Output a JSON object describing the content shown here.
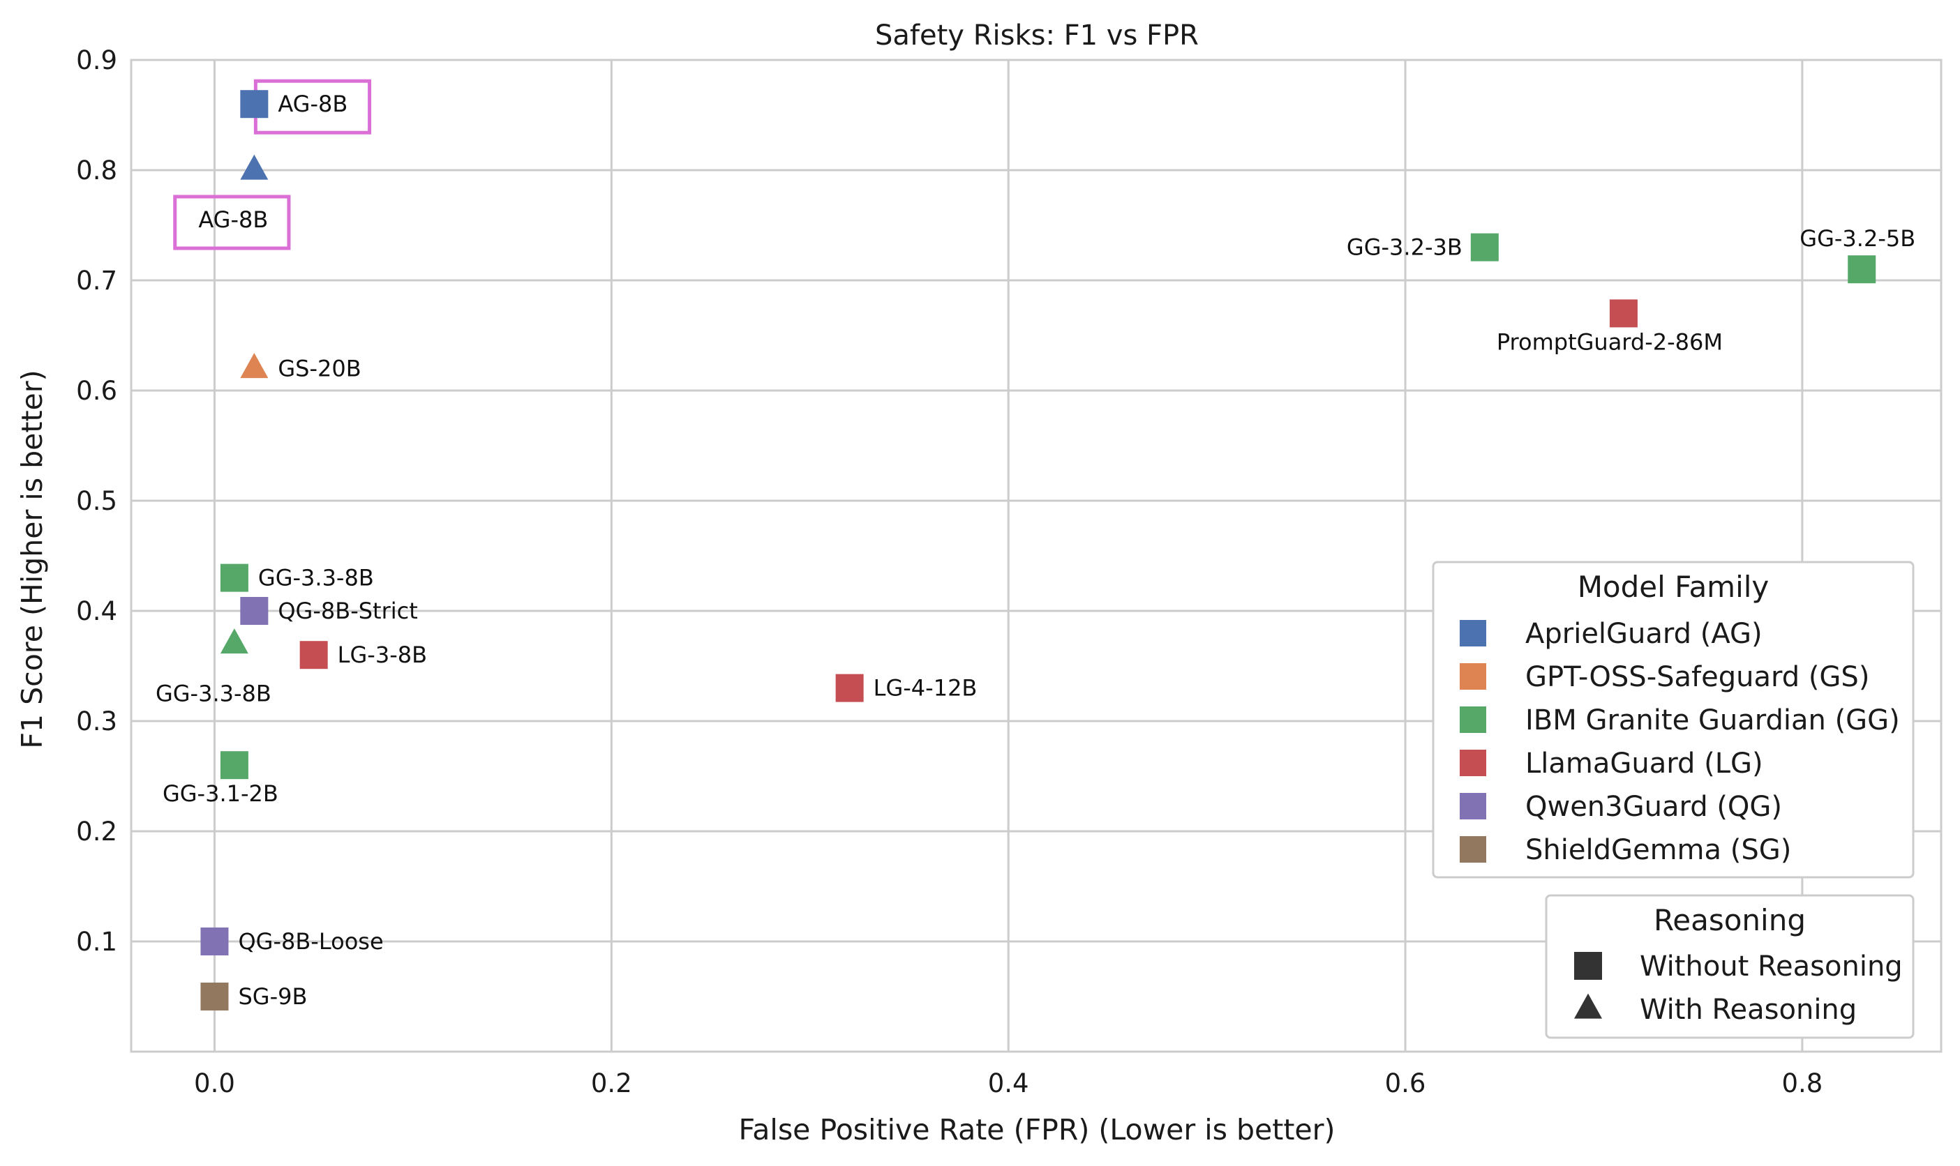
{
  "chart_data": {
    "type": "scatter",
    "title": "Safety Risks: F1 vs FPR",
    "xlabel": "False Positive Rate (FPR) (Lower is better)",
    "ylabel": "F1 Score (Higher is better)",
    "xlim": [
      -0.042,
      0.87
    ],
    "ylim": [
      0.0,
      0.9
    ],
    "xticks": [
      0.0,
      0.2,
      0.4,
      0.6,
      0.8
    ],
    "xtick_labels": [
      "0.0",
      "0.2",
      "0.4",
      "0.6",
      "0.8"
    ],
    "yticks": [
      0.1,
      0.2,
      0.3,
      0.4,
      0.5,
      0.6,
      0.7,
      0.8,
      0.9
    ],
    "ytick_labels": [
      "0.1",
      "0.2",
      "0.3",
      "0.4",
      "0.5",
      "0.6",
      "0.7",
      "0.8",
      "0.9"
    ],
    "grid": true,
    "families": [
      {
        "code": "AG",
        "name": "AprielGuard (AG)",
        "color": "#4c72b0"
      },
      {
        "code": "GS",
        "name": "GPT-OSS-Safeguard (GS)",
        "color": "#dd8452"
      },
      {
        "code": "GG",
        "name": "IBM Granite Guardian (GG)",
        "color": "#55a868"
      },
      {
        "code": "LG",
        "name": "LlamaGuard (LG)",
        "color": "#c44e52"
      },
      {
        "code": "QG",
        "name": "Qwen3Guard (QG)",
        "color": "#8172b3"
      },
      {
        "code": "SG",
        "name": "ShieldGemma (SG)",
        "color": "#937860"
      }
    ],
    "markers": [
      {
        "shape": "square",
        "name": "Without Reasoning"
      },
      {
        "shape": "triangle",
        "name": "With Reasoning"
      }
    ],
    "legend_family_title": "Model Family",
    "legend_marker_title": "Reasoning",
    "legend_position": "lower-right",
    "points": [
      {
        "label": "AG-8B",
        "family": "AG",
        "reasoning": false,
        "x": 0.02,
        "y": 0.86,
        "label_pos": "right",
        "highlight": true
      },
      {
        "label": "AG-8B",
        "family": "AG",
        "reasoning": true,
        "x": 0.02,
        "y": 0.8,
        "label_pos": "below-left",
        "highlight": true
      },
      {
        "label": "GS-20B",
        "family": "GS",
        "reasoning": true,
        "x": 0.02,
        "y": 0.62,
        "label_pos": "right"
      },
      {
        "label": "GG-3.3-8B",
        "family": "GG",
        "reasoning": false,
        "x": 0.01,
        "y": 0.43,
        "label_pos": "right"
      },
      {
        "label": "GG-3.3-8B",
        "family": "GG",
        "reasoning": true,
        "x": 0.01,
        "y": 0.37,
        "label_pos": "below-left"
      },
      {
        "label": "GG-3.1-2B",
        "family": "GG",
        "reasoning": false,
        "x": 0.01,
        "y": 0.26,
        "label_pos": "below"
      },
      {
        "label": "GG-3.2-3B",
        "family": "GG",
        "reasoning": false,
        "x": 0.64,
        "y": 0.73,
        "label_pos": "left"
      },
      {
        "label": "GG-3.2-5B",
        "family": "GG",
        "reasoning": false,
        "x": 0.83,
        "y": 0.71,
        "label_pos": "above"
      },
      {
        "label": "PromptGuard-2-86M",
        "family": "LG",
        "reasoning": false,
        "x": 0.71,
        "y": 0.67,
        "label_pos": "below"
      },
      {
        "label": "QG-8B-Strict",
        "family": "QG",
        "reasoning": false,
        "x": 0.02,
        "y": 0.4,
        "label_pos": "right"
      },
      {
        "label": "LG-3-8B",
        "family": "LG",
        "reasoning": false,
        "x": 0.05,
        "y": 0.36,
        "label_pos": "right"
      },
      {
        "label": "LG-4-12B",
        "family": "LG",
        "reasoning": false,
        "x": 0.32,
        "y": 0.33,
        "label_pos": "right"
      },
      {
        "label": "QG-8B-Loose",
        "family": "QG",
        "reasoning": false,
        "x": 0.0,
        "y": 0.1,
        "label_pos": "right"
      },
      {
        "label": "SG-9B",
        "family": "SG",
        "reasoning": false,
        "x": 0.0,
        "y": 0.05,
        "label_pos": "right"
      }
    ],
    "highlight_color": "#da70d6"
  }
}
